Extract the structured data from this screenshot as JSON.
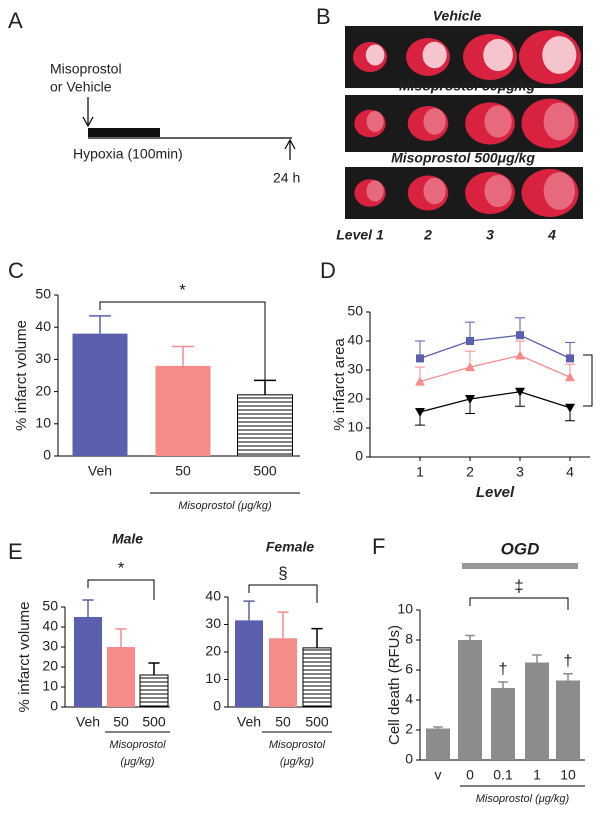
{
  "panel_labels": [
    "A",
    "B",
    "C",
    "D",
    "E",
    "F"
  ],
  "timeline": {
    "agent_label": [
      "Misoprostol",
      "or Vehicle"
    ],
    "bar_label": "Hypoxia (100min)",
    "end_label": "24 h"
  },
  "brain_images": {
    "groups": [
      "Vehicle",
      "Misoprostol 50μg/kg",
      "Misoprostol 500μg/kg"
    ],
    "levels": [
      "Level 1",
      "2",
      "3",
      "4"
    ]
  },
  "chart_data": [
    {
      "type": "bar",
      "ylabel": "% infarct volume",
      "categories": [
        "Veh",
        "50",
        "500"
      ],
      "values": [
        38,
        28,
        19
      ],
      "errors": [
        5.5,
        6,
        4.5
      ],
      "fills": [
        "#5a5fae",
        "#f58c8a",
        "hatch"
      ],
      "ylim": [
        0,
        50
      ],
      "yticks": [
        0,
        10,
        20,
        30,
        40,
        50
      ],
      "significance": "*",
      "group_label": [
        "Misoprostol (μg/kg)"
      ]
    },
    {
      "type": "line",
      "ylabel": "% infarct area",
      "xlabel": "Level",
      "x": [
        1,
        2,
        3,
        4
      ],
      "xlim": [
        0,
        4.4
      ],
      "xticks": [
        1,
        2,
        3,
        4
      ],
      "ylim": [
        0,
        50
      ],
      "yticks": [
        0,
        10,
        20,
        30,
        40,
        50
      ],
      "series": [
        {
          "color": "#5a5fae",
          "marker": "square",
          "values": [
            34,
            40,
            42,
            34
          ],
          "errors": [
            6,
            6.5,
            6,
            5.5
          ]
        },
        {
          "color": "#f58c8a",
          "marker": "triangle-up",
          "values": [
            26,
            31,
            35,
            27.5
          ],
          "errors": [
            5,
            5.5,
            5,
            4.5
          ]
        },
        {
          "color": "#000000",
          "marker": "triangle-down",
          "values": [
            15.5,
            20,
            22.5,
            17
          ],
          "errors": [
            4.5,
            5,
            5,
            4.5
          ]
        }
      ]
    },
    {
      "type": "bar",
      "title": "Male",
      "ylabel": "% infarct volume",
      "categories": [
        "Veh",
        "50",
        "500"
      ],
      "values": [
        45,
        30,
        16
      ],
      "errors": [
        8.5,
        9,
        6
      ],
      "fills": [
        "#5a5fae",
        "#f58c8a",
        "hatch"
      ],
      "ylim": [
        0,
        50
      ],
      "yticks": [
        0,
        10,
        20,
        30,
        40,
        50
      ],
      "significance": "*",
      "group_label": [
        "Misoprostol",
        "(μg/kg)"
      ]
    },
    {
      "type": "bar",
      "title": "Female",
      "categories": [
        "Veh",
        "50",
        "500"
      ],
      "values": [
        31.5,
        25,
        21.5
      ],
      "errors": [
        7,
        9.5,
        7
      ],
      "fills": [
        "#5a5fae",
        "#f58c8a",
        "hatch"
      ],
      "ylim": [
        0,
        40
      ],
      "yticks": [
        0,
        10,
        20,
        30,
        40
      ],
      "significance": "§",
      "group_label": [
        "Misoprostol",
        "(μg/kg)"
      ]
    },
    {
      "type": "bar",
      "title": "OGD",
      "ylabel": "Cell death (RFUs)",
      "categories": [
        "v",
        "0",
        "0.1",
        "1",
        "10"
      ],
      "values": [
        2.1,
        8,
        4.8,
        6.5,
        5.3
      ],
      "errors": [
        0.1,
        0.3,
        0.4,
        0.5,
        0.45
      ],
      "fills": [
        "#8c8c8c",
        "#8c8c8c",
        "#8c8c8c",
        "#8c8c8c",
        "#8c8c8c"
      ],
      "value_annotations": [
        null,
        null,
        "†",
        null,
        "†"
      ],
      "ylim": [
        0,
        10
      ],
      "yticks": [
        0,
        2,
        4,
        6,
        8,
        10
      ],
      "significance": "‡",
      "group_label": [
        "Misoprostol (μg/kg)"
      ]
    }
  ]
}
